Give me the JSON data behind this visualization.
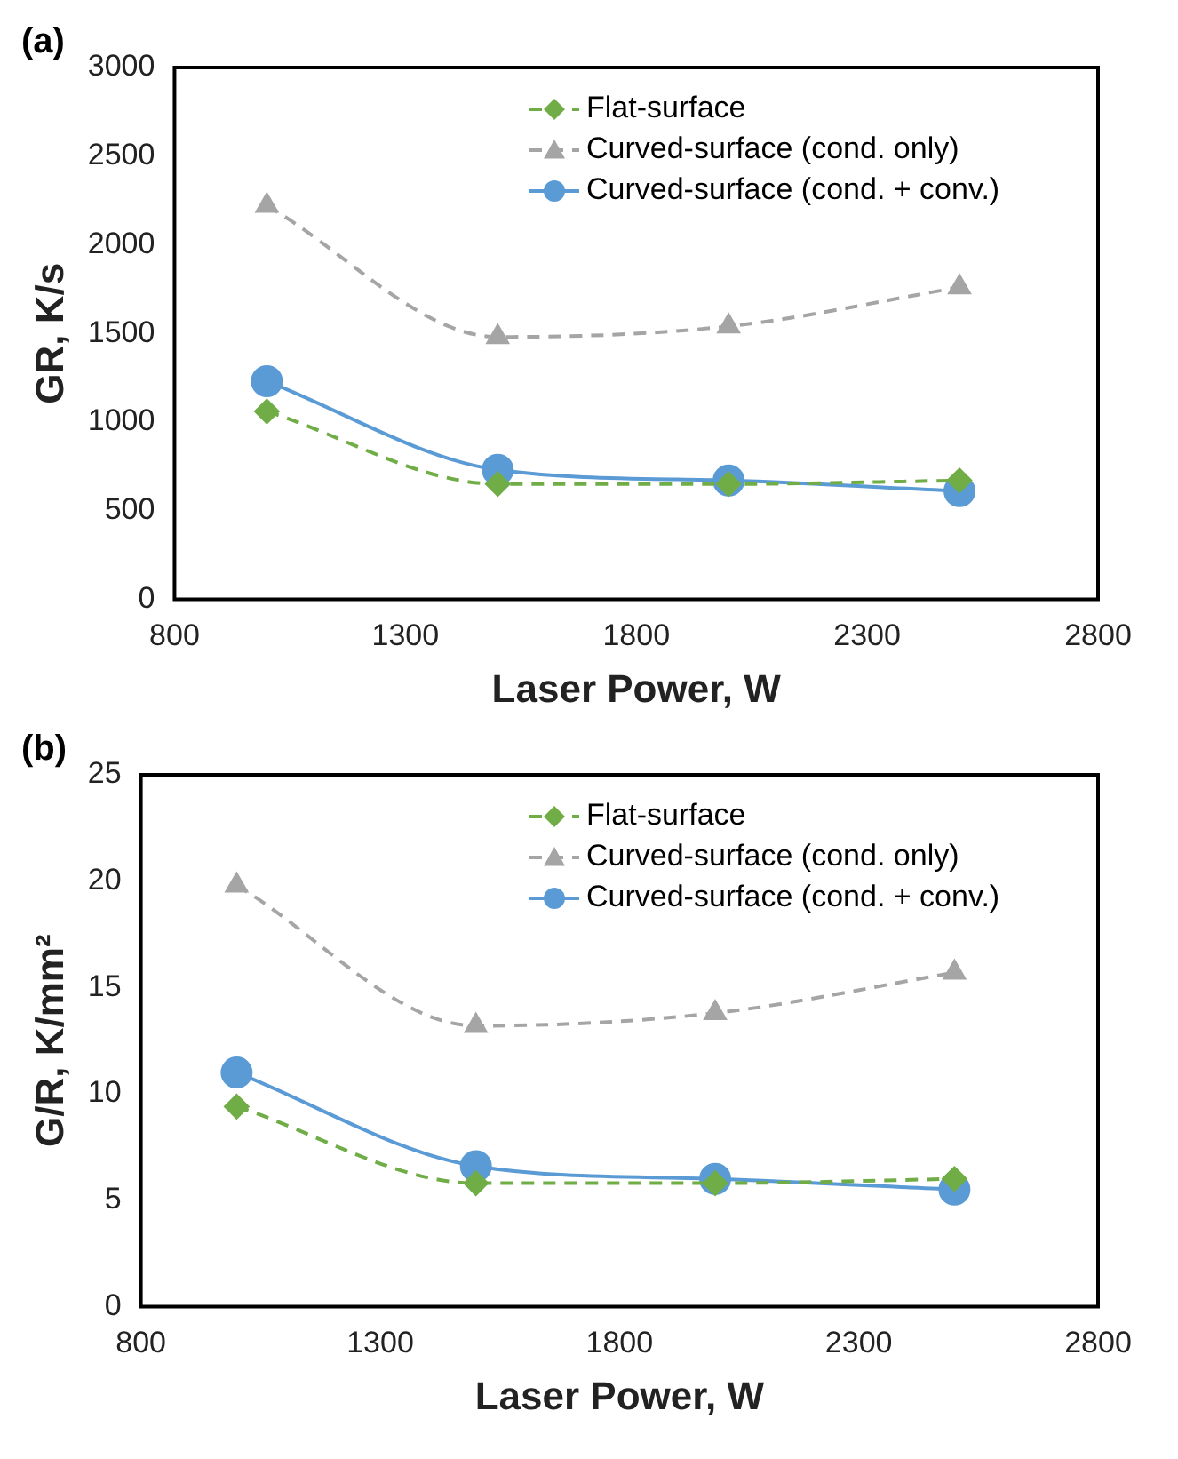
{
  "chart_data": [
    {
      "type": "line",
      "title": "(a)",
      "xlabel": "Laser Power, W",
      "ylabel": "GR, K/s",
      "x": [
        1000,
        1500,
        2000,
        2500
      ],
      "xlim": [
        800,
        2800
      ],
      "xticks": [
        800,
        1300,
        1800,
        2300,
        2800
      ],
      "ylim": [
        0,
        3000
      ],
      "yticks": [
        0,
        500,
        1000,
        1500,
        2000,
        2500,
        3000
      ],
      "grid": false,
      "legend": "top right",
      "series": [
        {
          "name": "Flat-surface",
          "color": "#70ad47",
          "values": [
            1060,
            650,
            650,
            670
          ],
          "marker": "diamond",
          "line_style": "dashed"
        },
        {
          "name": "Curved-surface (cond. only)",
          "color": "#a5a5a5",
          "values": [
            2220,
            1480,
            1540,
            1760
          ],
          "marker": "triangle",
          "line_style": "dashed"
        },
        {
          "name": "Curved-surface (cond. + conv.)",
          "color": "#5b9bd5",
          "values": [
            1230,
            730,
            670,
            610
          ],
          "marker": "circle",
          "line_style": "solid"
        }
      ]
    },
    {
      "type": "line",
      "title": "(b)",
      "xlabel": "Laser Power, W",
      "ylabel": "G/R, K/mm²",
      "x": [
        1000,
        1500,
        2000,
        2500
      ],
      "xlim": [
        800,
        2800
      ],
      "xticks": [
        800,
        1300,
        1800,
        2300,
        2800
      ],
      "ylim": [
        0,
        25
      ],
      "yticks": [
        0,
        5,
        10,
        15,
        20,
        25
      ],
      "grid": false,
      "legend": "top right",
      "series": [
        {
          "name": "Flat-surface",
          "color": "#70ad47",
          "values": [
            9.4,
            5.8,
            5.8,
            6.0
          ],
          "marker": "diamond",
          "line_style": "dashed"
        },
        {
          "name": "Curved-surface (cond. only)",
          "color": "#a5a5a5",
          "values": [
            19.8,
            13.2,
            13.8,
            15.7
          ],
          "marker": "triangle",
          "line_style": "dashed"
        },
        {
          "name": "Curved-surface (cond. + conv.)",
          "color": "#5b9bd5",
          "values": [
            11.0,
            6.6,
            6.0,
            5.5
          ],
          "marker": "circle",
          "line_style": "solid"
        }
      ]
    }
  ]
}
